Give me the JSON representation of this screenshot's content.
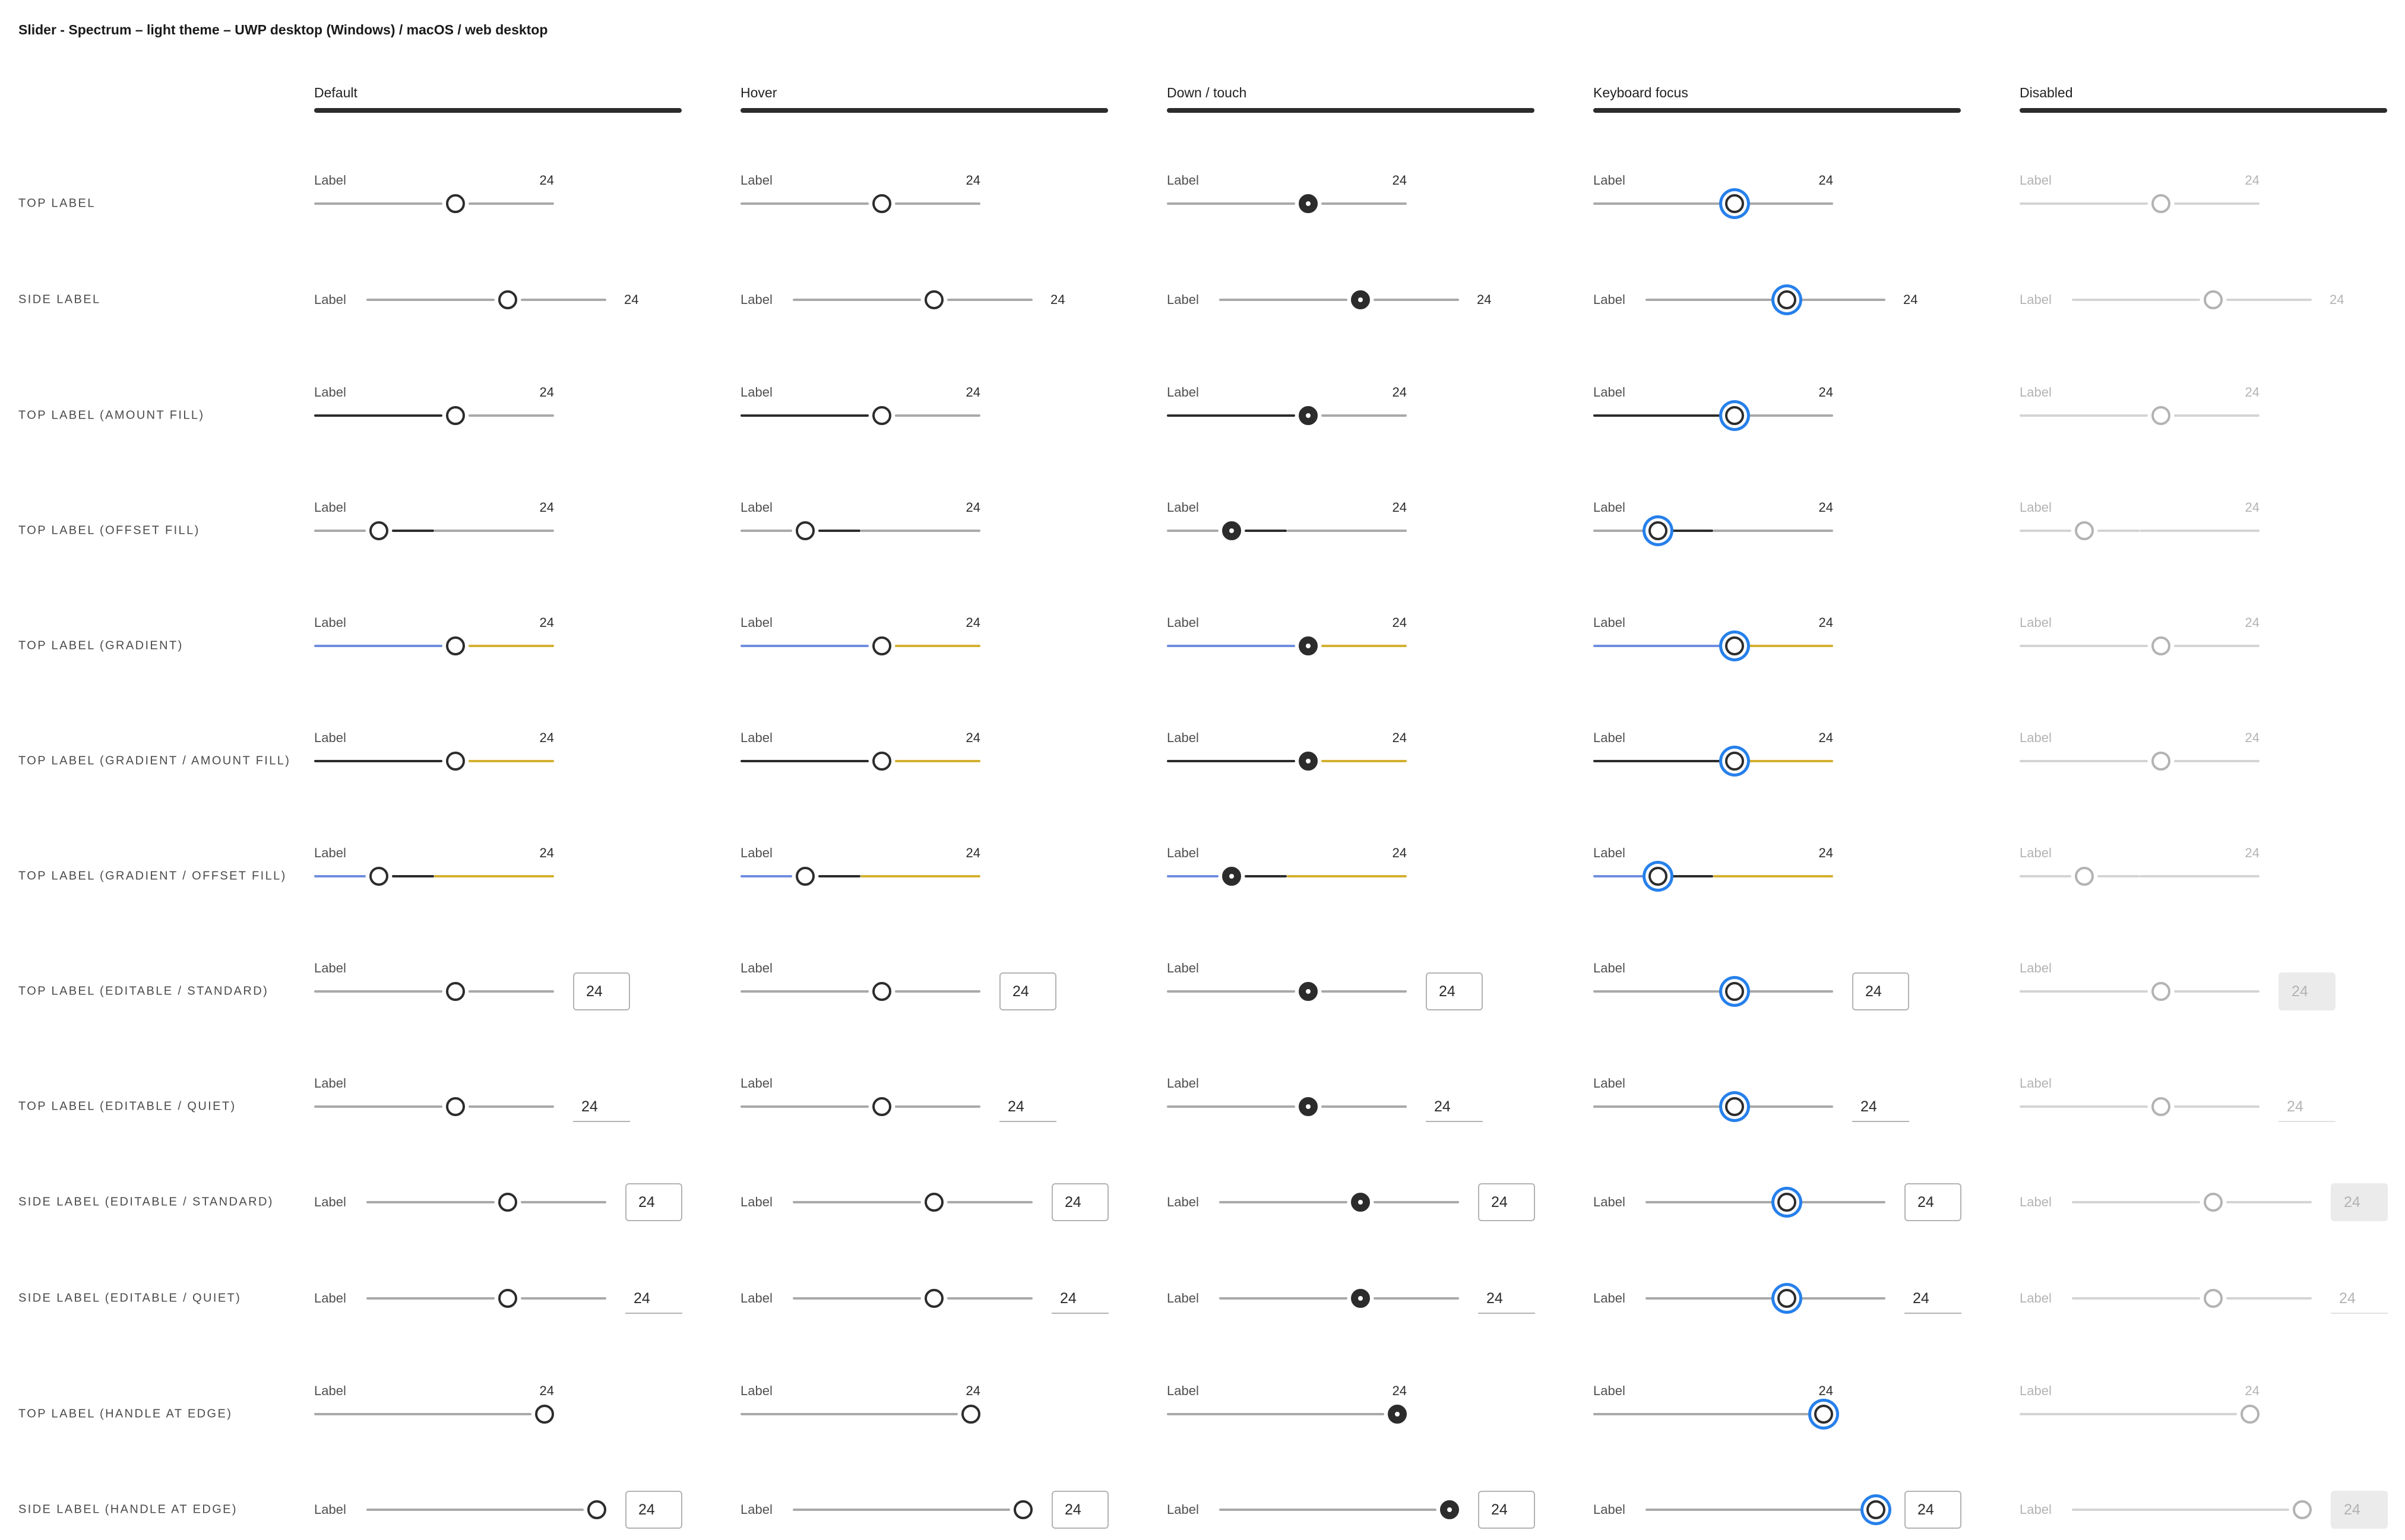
{
  "page_title": "Slider - Spectrum – light theme – UWP desktop (Windows) / macOS / web desktop",
  "columns": [
    {
      "key": "default",
      "label": "Default"
    },
    {
      "key": "hover",
      "label": "Hover"
    },
    {
      "key": "down",
      "label": "Down / touch"
    },
    {
      "key": "focus",
      "label": "Keyboard focus"
    },
    {
      "key": "disabled",
      "label": "Disabled"
    }
  ],
  "rows": [
    {
      "label": "TOP LABEL",
      "layout": "top",
      "fill": "none",
      "handle": 0.59,
      "editable": "none"
    },
    {
      "label": "SIDE LABEL",
      "layout": "side",
      "fill": "none",
      "handle": 0.59,
      "editable": "none"
    },
    {
      "label": "TOP LABEL (AMOUNT FILL)",
      "layout": "top",
      "fill": "amount",
      "handle": 0.59,
      "editable": "none"
    },
    {
      "label": "TOP LABEL (OFFSET FILL)",
      "layout": "top",
      "fill": "offset",
      "handle": 0.27,
      "offset_end": 0.5,
      "editable": "none"
    },
    {
      "label": "TOP LABEL (GRADIENT)",
      "layout": "top",
      "fill": "gradient",
      "handle": 0.59,
      "editable": "none"
    },
    {
      "label": "TOP LABEL (GRADIENT / AMOUNT FILL)",
      "layout": "top",
      "fill": "gradient-amount",
      "handle": 0.59,
      "editable": "none"
    },
    {
      "label": "TOP LABEL (GRADIENT / OFFSET FILL)",
      "layout": "top",
      "fill": "gradient-offset",
      "handle": 0.27,
      "offset_end": 0.5,
      "editable": "none"
    },
    {
      "label": "TOP LABEL (EDITABLE / STANDARD)",
      "layout": "top",
      "fill": "none",
      "handle": 0.59,
      "editable": "standard"
    },
    {
      "label": "TOP LABEL (EDITABLE / QUIET)",
      "layout": "top",
      "fill": "none",
      "handle": 0.59,
      "editable": "quiet"
    },
    {
      "label": "SIDE LABEL (EDITABLE / STANDARD)",
      "layout": "side",
      "fill": "none",
      "handle": 0.59,
      "editable": "standard"
    },
    {
      "label": "SIDE LABEL (EDITABLE / QUIET)",
      "layout": "side",
      "fill": "none",
      "handle": 0.59,
      "editable": "quiet"
    },
    {
      "label": "TOP LABEL (HANDLE AT EDGE)",
      "layout": "top",
      "fill": "none",
      "handle": 0.96,
      "editable": "none"
    },
    {
      "label": "SIDE LABEL (HANDLE AT EDGE)",
      "layout": "side",
      "fill": "none",
      "handle": 0.96,
      "editable": "standard"
    }
  ],
  "slider_label": "Label",
  "slider_value": "24",
  "colors": {
    "track": "#a9a9a9",
    "fill": "#2c2c2c",
    "gradient_start": "#6f8de0",
    "gradient_end": "#d4b030",
    "focus": "#2680eb",
    "disabled": "#d4d4d4"
  }
}
